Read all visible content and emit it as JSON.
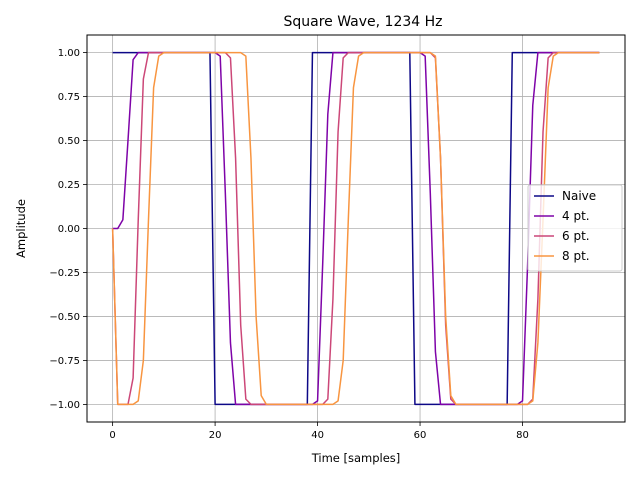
{
  "chart_data": {
    "type": "line",
    "title": "Square Wave, 1234 Hz",
    "xlabel": "Time [samples]",
    "ylabel": "Amplitude",
    "xlim": [
      -5,
      100
    ],
    "ylim": [
      -1.1,
      1.1
    ],
    "xticks": [
      0,
      20,
      40,
      60,
      80
    ],
    "yticks": [
      -1.0,
      -0.75,
      -0.5,
      -0.25,
      0.0,
      0.25,
      0.5,
      0.75,
      1.0
    ],
    "xtick_labels": [
      "0",
      "20",
      "40",
      "60",
      "80"
    ],
    "ytick_labels": [
      "−1.00",
      "−0.75",
      "−0.50",
      "−0.25",
      "0.00",
      "0.25",
      "0.50",
      "0.75",
      "1.00"
    ],
    "grid": true,
    "legend_position": "center-right",
    "x": [
      0,
      1,
      2,
      3,
      4,
      5,
      6,
      7,
      8,
      9,
      10,
      11,
      12,
      13,
      14,
      15,
      16,
      17,
      18,
      19,
      20,
      21,
      22,
      23,
      24,
      25,
      26,
      27,
      28,
      29,
      30,
      31,
      32,
      33,
      34,
      35,
      36,
      37,
      38,
      39,
      40,
      41,
      42,
      43,
      44,
      45,
      46,
      47,
      48,
      49,
      50,
      51,
      52,
      53,
      54,
      55,
      56,
      57,
      58,
      59,
      60,
      61,
      62,
      63,
      64,
      65,
      66,
      67,
      68,
      69,
      70,
      71,
      72,
      73,
      74,
      75,
      76,
      77,
      78,
      79,
      80,
      81,
      82,
      83,
      84,
      85,
      86,
      87,
      88,
      89,
      90,
      91,
      92,
      93,
      94,
      95
    ],
    "series": [
      {
        "name": "Naive",
        "color": "#0d0887",
        "values": [
          1,
          1,
          1,
          1,
          1,
          1,
          1,
          1,
          1,
          1,
          1,
          1,
          1,
          1,
          1,
          1,
          1,
          1,
          1,
          1,
          -1,
          -1,
          -1,
          -1,
          -1,
          -1,
          -1,
          -1,
          -1,
          -1,
          -1,
          -1,
          -1,
          -1,
          -1,
          -1,
          -1,
          -1,
          -1,
          1,
          1,
          1,
          1,
          1,
          1,
          1,
          1,
          1,
          1,
          1,
          1,
          1,
          1,
          1,
          1,
          1,
          1,
          1,
          1,
          -1,
          -1,
          -1,
          -1,
          -1,
          -1,
          -1,
          -1,
          -1,
          -1,
          -1,
          -1,
          -1,
          -1,
          -1,
          -1,
          -1,
          -1,
          -1,
          1,
          1,
          1,
          1,
          1,
          1,
          1,
          1,
          1,
          1,
          1,
          1,
          1,
          1,
          1,
          1,
          1,
          1
        ]
      },
      {
        "name": "4 pt.",
        "color": "#7e03a8",
        "values": [
          0,
          0,
          0.05,
          0.5,
          0.96,
          1,
          1,
          1,
          1,
          1,
          1,
          1,
          1,
          1,
          1,
          1,
          1,
          1,
          1,
          1,
          1,
          0.98,
          0.2,
          -0.65,
          -1,
          -1,
          -1,
          -1,
          -1,
          -1,
          -1,
          -1,
          -1,
          -1,
          -1,
          -1,
          -1,
          -1,
          -1,
          -1,
          -0.98,
          -0.2,
          0.65,
          1,
          1,
          1,
          1,
          1,
          1,
          1,
          1,
          1,
          1,
          1,
          1,
          1,
          1,
          1,
          1,
          1,
          1,
          0.98,
          0.2,
          -0.7,
          -1,
          -1,
          -1,
          -1,
          -1,
          -1,
          -1,
          -1,
          -1,
          -1,
          -1,
          -1,
          -1,
          -1,
          -1,
          -1,
          -0.98,
          -0.2,
          0.7,
          1,
          1,
          1,
          1,
          1,
          1,
          1,
          1,
          1,
          1,
          1,
          1,
          1
        ]
      },
      {
        "name": "6 pt.",
        "color": "#cc4778",
        "values": [
          0,
          -1,
          -1,
          -1,
          -0.85,
          0.05,
          0.85,
          1,
          1,
          1,
          1,
          1,
          1,
          1,
          1,
          1,
          1,
          1,
          1,
          1,
          1,
          1,
          1,
          0.97,
          0.4,
          -0.55,
          -0.97,
          -1,
          -1,
          -1,
          -1,
          -1,
          -1,
          -1,
          -1,
          -1,
          -1,
          -1,
          -1,
          -1,
          -1,
          -1,
          -0.97,
          -0.4,
          0.55,
          0.97,
          1,
          1,
          1,
          1,
          1,
          1,
          1,
          1,
          1,
          1,
          1,
          1,
          1,
          1,
          1,
          1,
          1,
          0.97,
          0.4,
          -0.55,
          -0.97,
          -1,
          -1,
          -1,
          -1,
          -1,
          -1,
          -1,
          -1,
          -1,
          -1,
          -1,
          -1,
          -1,
          -1,
          -1,
          -0.97,
          -0.4,
          0.55,
          0.97,
          1,
          1,
          1,
          1,
          1,
          1,
          1,
          1,
          1,
          1
        ]
      },
      {
        "name": "8 pt.",
        "color": "#f89540",
        "values": [
          0,
          -1,
          -1,
          -1,
          -1,
          -0.98,
          -0.75,
          0.05,
          0.8,
          0.98,
          1,
          1,
          1,
          1,
          1,
          1,
          1,
          1,
          1,
          1,
          1,
          1,
          1,
          1,
          1,
          1,
          0.98,
          0.4,
          -0.5,
          -0.95,
          -1,
          -1,
          -1,
          -1,
          -1,
          -1,
          -1,
          -1,
          -1,
          -1,
          -1,
          -1,
          -1,
          -1,
          -0.98,
          -0.75,
          0.05,
          0.8,
          0.98,
          1,
          1,
          1,
          1,
          1,
          1,
          1,
          1,
          1,
          1,
          1,
          1,
          1,
          1,
          0.98,
          0.4,
          -0.5,
          -0.95,
          -1,
          -1,
          -1,
          -1,
          -1,
          -1,
          -1,
          -1,
          -1,
          -1,
          -1,
          -1,
          -1,
          -1,
          -1,
          -0.98,
          -0.65,
          0.05,
          0.8,
          0.98,
          1,
          1,
          1,
          1,
          1,
          1,
          1,
          1,
          1
        ]
      }
    ]
  }
}
